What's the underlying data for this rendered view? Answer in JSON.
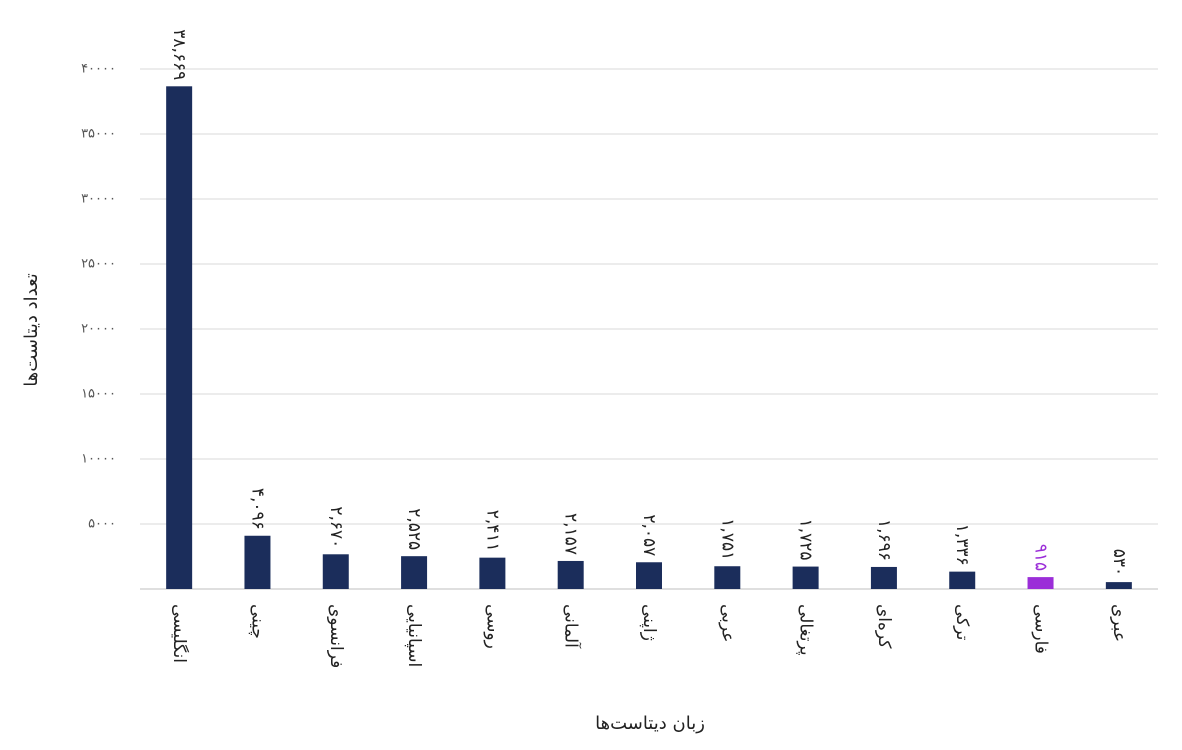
{
  "chart_data": {
    "type": "bar",
    "x_label": "زبان دیتاست‌ها",
    "y_label": "تعداد دیتاست‌ها",
    "categories": [
      "انگلیسی",
      "چینی",
      "فرانسوی",
      "اسپانیایی",
      "روسی",
      "آلمانی",
      "ژاپنی",
      "عربی",
      "پرتغالی",
      "کره‌ای",
      "ترکی",
      "فارسی",
      "عبری"
    ],
    "values": [
      38669,
      4096,
      2670,
      2525,
      2411,
      2157,
      2057,
      1751,
      1725,
      1696,
      1336,
      915,
      530
    ],
    "value_labels": [
      "۳۸,۶۶۹",
      "۴,۰۹۶",
      "۲,۶۷۰",
      "۲,۵۲۵",
      "۲,۴۱۱",
      "۲,۱۵۷",
      "۲,۰۵۷",
      "۱,۷۵۱",
      "۱,۷۲۵",
      "۱,۶۹۶",
      "۱,۳۳۶",
      "۹۱۵",
      "۵۳۰"
    ],
    "colors": [
      "#1b2d5b",
      "#1b2d5b",
      "#1b2d5b",
      "#1b2d5b",
      "#1b2d5b",
      "#1b2d5b",
      "#1b2d5b",
      "#1b2d5b",
      "#1b2d5b",
      "#1b2d5b",
      "#1b2d5b",
      "#9b2ed8",
      "#1b2d5b"
    ],
    "ylim": [
      0,
      40000
    ],
    "yticks": [
      {
        "value": 5000,
        "label": "۵۰۰۰"
      },
      {
        "value": 10000,
        "label": "۱۰۰۰۰"
      },
      {
        "value": 15000,
        "label": "۱۵۰۰۰"
      },
      {
        "value": 20000,
        "label": "۲۰۰۰۰"
      },
      {
        "value": 25000,
        "label": "۲۵۰۰۰"
      },
      {
        "value": 30000,
        "label": "۳۰۰۰۰"
      },
      {
        "value": 35000,
        "label": "۳۵۰۰۰"
      },
      {
        "value": 40000,
        "label": "۴۰۰۰۰"
      }
    ],
    "grid": true
  }
}
